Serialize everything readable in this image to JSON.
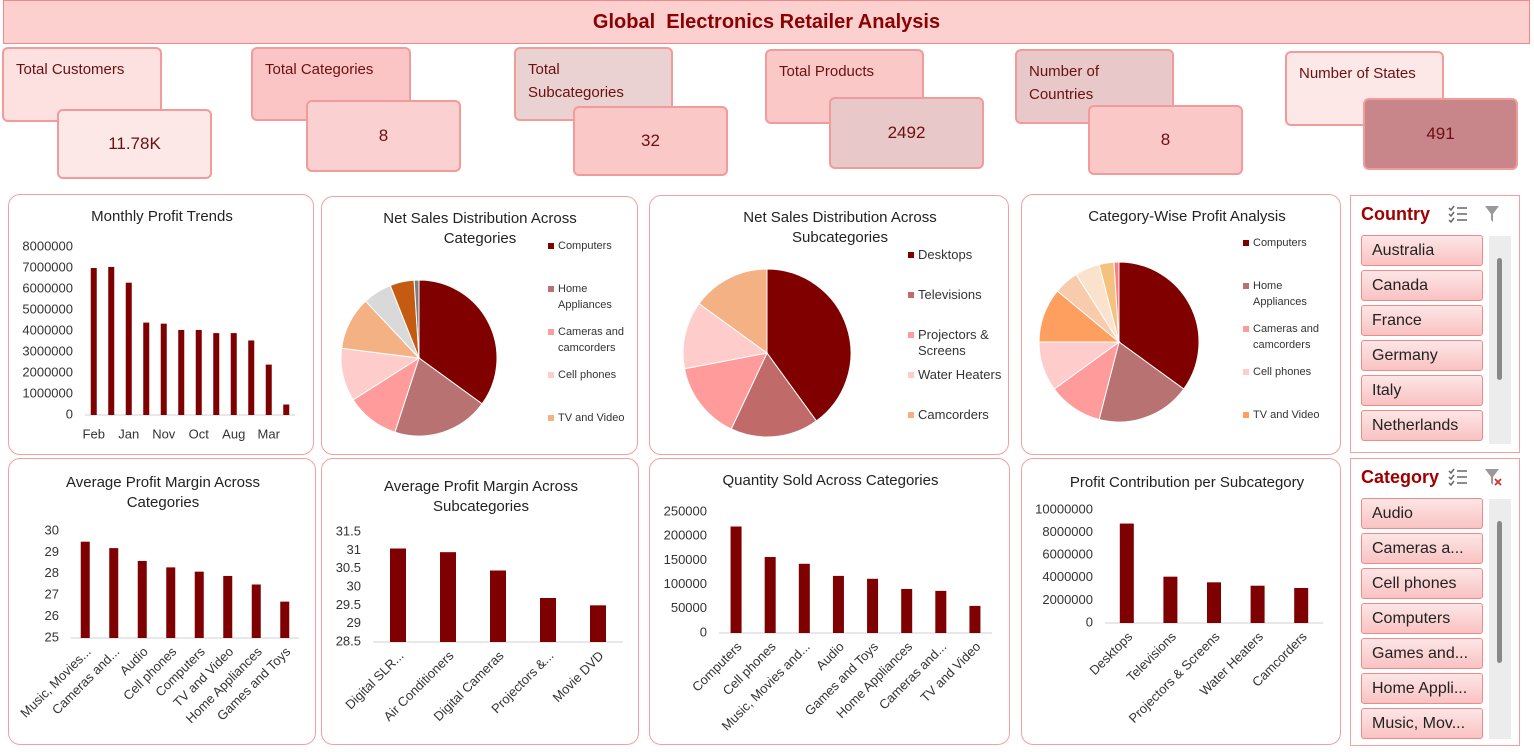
{
  "header": {
    "title": "Global  Electronics Retailer Analysis"
  },
  "kpis": [
    {
      "label": "Total Customers",
      "value": "11.78K"
    },
    {
      "label": "Total Categories",
      "value": 8
    },
    {
      "label": "Total Subcategories",
      "value": 32
    },
    {
      "label": "Total Products",
      "value": 2492
    },
    {
      "label": "Number of Countries",
      "value": 8
    },
    {
      "label": "Number of States",
      "value": 491
    }
  ],
  "chart_data": [
    {
      "type": "bar",
      "title": "Monthly Profit Trends",
      "categories": [
        "Feb",
        null,
        "Jan",
        null,
        "Nov",
        null,
        "Oct",
        null,
        "Aug",
        null,
        "Mar",
        null
      ],
      "values": [
        7000000,
        7050000,
        6300000,
        4400000,
        4350000,
        4050000,
        4050000,
        3900000,
        3900000,
        3550000,
        2400000,
        500000
      ],
      "color": "#7f0000",
      "ylim": [
        0,
        8000000
      ],
      "yticks": [
        0,
        1000000,
        2000000,
        3000000,
        4000000,
        5000000,
        6000000,
        7000000,
        8000000
      ],
      "grid": false
    },
    {
      "type": "pie",
      "title": "Net Sales Distribution Across Categories",
      "categories": [
        "Computers",
        "Home Appliances",
        "Cameras and camcorders",
        "Cell phones",
        "TV and Video",
        null,
        null,
        null
      ],
      "values": [
        35,
        20,
        11,
        11,
        11,
        6,
        5,
        1
      ],
      "colors": [
        "#800000",
        "#b87272",
        "#ff9b9b",
        "#ffcccc",
        "#f4b183",
        "#d9d9d9",
        "#c55a11",
        "#7f7f7f"
      ]
    },
    {
      "type": "pie",
      "title": "Net Sales Distribution Across Subcategories",
      "categories": [
        "Desktops",
        "Televisions",
        "Projectors & Screens",
        "Water Heaters",
        "Camcorders"
      ],
      "values": [
        40,
        17,
        15,
        13,
        15
      ],
      "colors": [
        "#800000",
        "#c06a6a",
        "#ff9b9b",
        "#ffcccc",
        "#f4b183"
      ]
    },
    {
      "type": "pie",
      "title": "Category-Wise Profit Analysis",
      "categories": [
        "Computers",
        "Home Appliances",
        "Cameras and camcorders",
        "Cell phones",
        "TV and Video",
        null,
        null,
        null,
        null
      ],
      "values": [
        35,
        19,
        11,
        10,
        11,
        5,
        5,
        3,
        1
      ],
      "colors": [
        "#800000",
        "#b87272",
        "#ff9b9b",
        "#ffcccc",
        "#ff9f5f",
        "#f8cbad",
        "#fbe2cc",
        "#f4c27f",
        "#ff7c80"
      ]
    },
    {
      "type": "bar",
      "title": "Average Profit Margin Across Categories",
      "categories": [
        "Music, Movies...",
        "Cameras and...",
        "Audio",
        "Cell phones",
        "Computers",
        "TV and Video",
        "Home Appliances",
        "Games and Toys"
      ],
      "values": [
        29.5,
        29.2,
        28.6,
        28.3,
        28.1,
        27.9,
        27.5,
        26.7
      ],
      "color": "#7f0000",
      "ylim": [
        25,
        30
      ],
      "yticks": [
        25,
        26,
        27,
        28,
        29,
        30
      ],
      "grid": false
    },
    {
      "type": "bar",
      "title": "Average Profit Margin Across Subcategories",
      "categories": [
        "Digital SLR...",
        "Air Conditioners",
        "Digital Cameras",
        "Projectors &...",
        "Movie DVD"
      ],
      "values": [
        31.05,
        30.95,
        30.45,
        29.7,
        29.5
      ],
      "color": "#7f0000",
      "ylim": [
        28.5,
        31.5
      ],
      "yticks": [
        28.5,
        29,
        29.5,
        30,
        30.5,
        31,
        31.5
      ],
      "grid": false
    },
    {
      "type": "bar",
      "title": "Quantity Sold Across Categories",
      "categories": [
        "Computers",
        "Cell phones",
        "Music, Movies and...",
        "Audio",
        "Games and Toys",
        "Home Appliances",
        "Cameras and...",
        "TV and Video"
      ],
      "values": [
        220000,
        157000,
        143000,
        118000,
        112000,
        91000,
        87000,
        56000
      ],
      "color": "#7f0000",
      "ylim": [
        0,
        250000
      ],
      "yticks": [
        0,
        50000,
        100000,
        150000,
        200000,
        250000
      ],
      "grid": false
    },
    {
      "type": "bar",
      "title": "Profit Contribution per Subcategory",
      "categories": [
        "Desktops",
        "Televisions",
        "Projectors & Screens",
        "Water Heaters",
        "Camcorders"
      ],
      "values": [
        8800000,
        4100000,
        3600000,
        3300000,
        3100000
      ],
      "color": "#7f0000",
      "ylim": [
        0,
        10000000
      ],
      "yticks": [
        0,
        2000000,
        4000000,
        6000000,
        8000000,
        10000000
      ],
      "grid": false
    }
  ],
  "slicers": [
    {
      "title": "Country",
      "items": [
        "Australia",
        "Canada",
        "France",
        "Germany",
        "Italy",
        "Netherlands"
      ]
    },
    {
      "title": "Category",
      "items": [
        "Audio",
        "Cameras a...",
        "Cell phones",
        "Computers",
        "Games and...",
        "Home Appli...",
        "Music, Mov..."
      ]
    }
  ]
}
